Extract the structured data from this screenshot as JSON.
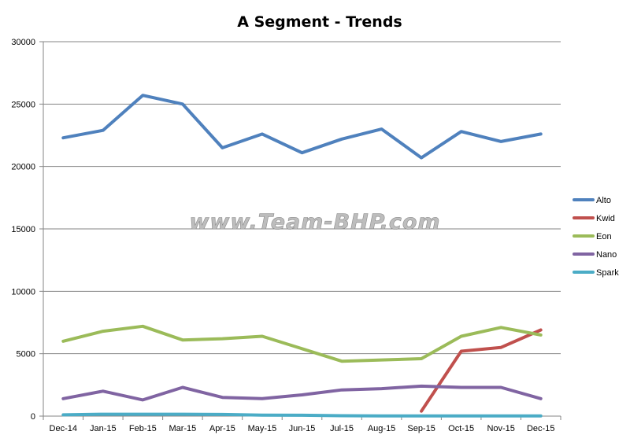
{
  "chart_data": {
    "type": "line",
    "title": "A Segment - Trends",
    "xlabel": "",
    "ylabel": "",
    "categories": [
      "Dec-14",
      "Jan-15",
      "Feb-15",
      "Mar-15",
      "Apr-15",
      "May-15",
      "Jun-15",
      "Jul-15",
      "Aug-15",
      "Sep-15",
      "Oct-15",
      "Nov-15",
      "Dec-15"
    ],
    "ylim": [
      0,
      30000
    ],
    "yticks": [
      0,
      5000,
      10000,
      15000,
      20000,
      25000,
      30000
    ],
    "grid": true,
    "legend_position": "right",
    "series": [
      {
        "name": "Alto",
        "color": "#4F81BD",
        "values": [
          22300,
          22900,
          25700,
          25000,
          21500,
          22600,
          21100,
          22200,
          23000,
          20700,
          22800,
          22000,
          22600
        ]
      },
      {
        "name": "Kwid",
        "color": "#C0504D",
        "values": [
          null,
          null,
          null,
          null,
          null,
          null,
          null,
          null,
          null,
          400,
          5200,
          5500,
          6900
        ]
      },
      {
        "name": "Eon",
        "color": "#9BBB59",
        "values": [
          6000,
          6800,
          7200,
          6100,
          6200,
          6400,
          5400,
          4400,
          4500,
          4600,
          6400,
          7100,
          6500
        ]
      },
      {
        "name": "Nano",
        "color": "#8064A2",
        "values": [
          1400,
          2000,
          1300,
          2300,
          1500,
          1400,
          1700,
          2100,
          2200,
          2400,
          2300,
          2300,
          1400
        ]
      },
      {
        "name": "Spark",
        "color": "#4BACC6",
        "values": [
          100,
          150,
          150,
          150,
          130,
          80,
          70,
          30,
          20,
          10,
          10,
          10,
          10
        ]
      }
    ]
  },
  "watermark": "www.Team-BHP.com"
}
